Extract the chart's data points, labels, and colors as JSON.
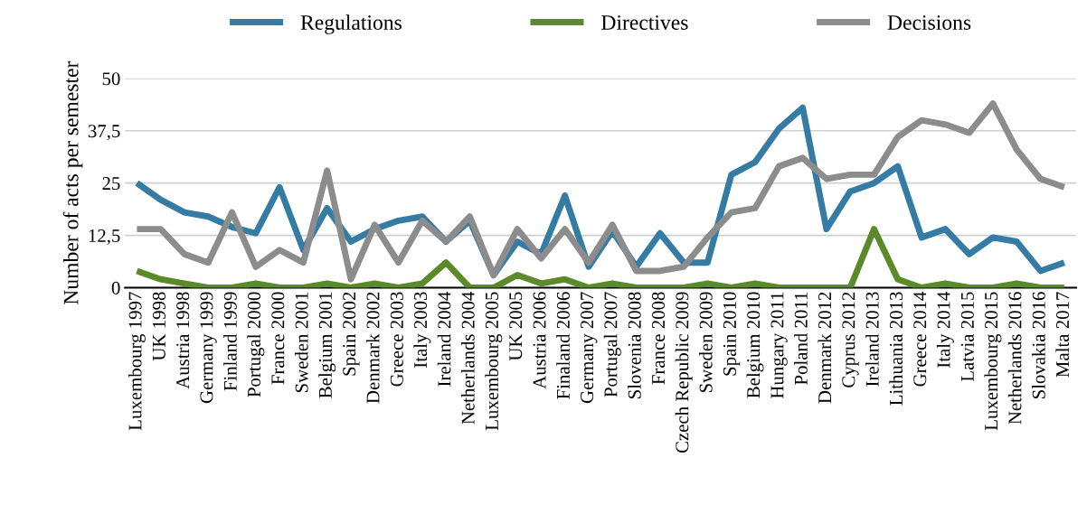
{
  "chart_data": {
    "type": "line",
    "ylabel": "Number of acts per semester",
    "categories": [
      "Luxembourg 1997",
      "UK 1998",
      "Austria 1998",
      "Germany 1999",
      "Finland 1999",
      "Portugal 2000",
      "France 2000",
      "Sweden 2001",
      "Belgium 2001",
      "Spain 2002",
      "Denmark 2002",
      "Greece 2003",
      "Italy 2003",
      "Ireland 2004",
      "Netherlands 2004",
      "Luxembourg 2005",
      "UK 2005",
      "Austria 2006",
      "Finaland 2006",
      "Germany 2007",
      "Portugal 2007",
      "Slovenia 2008",
      "France 2008",
      "Czech Republic 2009",
      "Sweden 2009",
      "Spain 2010",
      "Belgium 2010",
      "Hungary 2011",
      "Poland 2011",
      "Denmark 2012",
      "Cyprus 2012",
      "Ireland 2013",
      "Lithuania 2013",
      "Greece 2014",
      "Italy 2014",
      "Latvia 2015",
      "Luxembourg 2015",
      "Netherlands 2016",
      "Slovakia 2016",
      "Malta 2017"
    ],
    "series": [
      {
        "name": "Regulations",
        "color": "#357ca5",
        "values": [
          25,
          21,
          18,
          17,
          14.5,
          13,
          24,
          9,
          19,
          11,
          14,
          16,
          17,
          11,
          16,
          3,
          11,
          8,
          22,
          5,
          13.5,
          5,
          13,
          6,
          6,
          27,
          30,
          38,
          43,
          14,
          23,
          25,
          29,
          12,
          14,
          8,
          12,
          11,
          4,
          6
        ]
      },
      {
        "name": "Directives",
        "color": "#5a8a2a",
        "values": [
          4,
          2,
          1,
          0,
          0,
          1,
          0,
          0,
          1,
          0,
          1,
          0,
          1,
          6,
          0,
          0,
          3,
          1,
          2,
          0,
          1,
          0,
          0,
          0,
          1,
          0,
          1,
          0,
          0,
          0,
          0,
          14,
          2,
          0,
          1,
          0,
          0,
          1,
          0,
          0
        ]
      },
      {
        "name": "Decisions",
        "color": "#8c8c8c",
        "values": [
          14,
          14,
          8,
          6,
          18,
          5,
          9,
          6,
          28,
          2,
          15,
          6,
          16,
          11,
          17,
          3,
          14,
          7,
          14,
          6,
          15,
          4,
          4,
          5,
          12,
          18,
          19,
          29,
          31,
          26,
          27,
          27,
          36,
          40,
          39,
          37,
          44,
          33,
          26,
          24
        ]
      }
    ],
    "ylim": [
      0,
      50
    ],
    "yticks": [
      0,
      {
        "value": 12.5,
        "label": "12,5"
      },
      25,
      {
        "value": 37.5,
        "label": "37,5"
      },
      50
    ],
    "grid": "y",
    "legend": "top",
    "marker": "none",
    "line_style": "solid"
  }
}
